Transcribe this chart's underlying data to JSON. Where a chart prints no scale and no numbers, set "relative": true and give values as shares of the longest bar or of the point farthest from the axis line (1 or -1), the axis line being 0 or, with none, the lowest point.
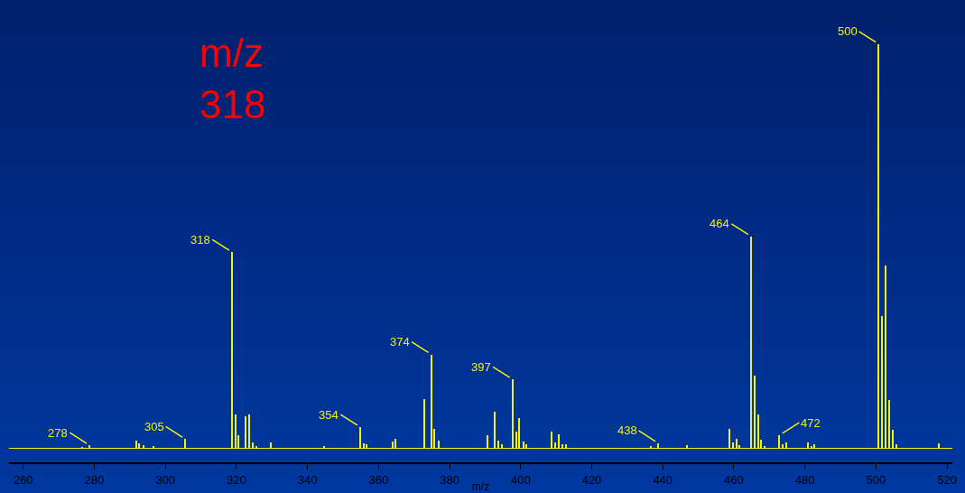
{
  "chart_data": {
    "type": "bar",
    "relative": true,
    "xlabel": "m/z",
    "color": "#f2f20a",
    "x": [
      276.6,
      278.7,
      291.8,
      292.7,
      293.8,
      296.8,
      305.7,
      318.8,
      319.7,
      320.7,
      322.7,
      323.6,
      324.7,
      325.7,
      329.7,
      344.8,
      354.9,
      355.9,
      356.7,
      363.9,
      364.9,
      372.9,
      374.9,
      375.8,
      376.9,
      390.8,
      392.7,
      393.8,
      394.7,
      397.8,
      398.8,
      399.7,
      400.8,
      401.7,
      408.8,
      409.7,
      410.7,
      411.7,
      412.7,
      436.8,
      438.8,
      446.9,
      458.7,
      459.7,
      460.8,
      461.7,
      464.9,
      465.8,
      466.8,
      467.8,
      468.8,
      472.8,
      473.8,
      474.8,
      480.9,
      481.8,
      482.8,
      500.8,
      501.8,
      502.7,
      503.8,
      504.8,
      505.8,
      517.7
    ],
    "values": [
      0.004,
      0.007,
      0.019,
      0.012,
      0.008,
      0.006,
      0.022,
      0.485,
      0.083,
      0.031,
      0.079,
      0.084,
      0.015,
      0.005,
      0.014,
      0.006,
      0.052,
      0.012,
      0.01,
      0.016,
      0.023,
      0.122,
      0.232,
      0.048,
      0.019,
      0.031,
      0.091,
      0.019,
      0.009,
      0.17,
      0.041,
      0.074,
      0.016,
      0.009,
      0.042,
      0.014,
      0.035,
      0.01,
      0.009,
      0.005,
      0.012,
      0.007,
      0.048,
      0.014,
      0.023,
      0.007,
      0.524,
      0.18,
      0.083,
      0.021,
      0.006,
      0.032,
      0.009,
      0.014,
      0.014,
      0.006,
      0.009,
      1.0,
      0.326,
      0.452,
      0.12,
      0.046,
      0.009,
      0.011
    ],
    "xlim": [
      256,
      521.5
    ],
    "xticks": [
      260,
      280,
      300,
      320,
      340,
      360,
      380,
      400,
      420,
      440,
      460,
      480,
      500,
      520
    ],
    "grid": false,
    "annotations": [
      "m/z\n318",
      {
        "text": "278",
        "x": 278.7,
        "y": 0.007
      },
      {
        "text": "305",
        "x": 305.7,
        "y": 0.022
      },
      {
        "text": "318",
        "x": 318.8,
        "y": 0.485
      },
      {
        "text": "354",
        "x": 354.9,
        "y": 0.052
      },
      {
        "text": "374",
        "x": 374.9,
        "y": 0.232
      },
      {
        "text": "397",
        "x": 397.8,
        "y": 0.17
      },
      {
        "text": "438",
        "x": 438.8,
        "y": 0.012
      },
      {
        "text": "464",
        "x": 464.9,
        "y": 0.524
      },
      {
        "text": "472",
        "x": 472.8,
        "y": 0.032
      },
      {
        "text": "500",
        "x": 500.8,
        "y": 1.0
      }
    ]
  }
}
